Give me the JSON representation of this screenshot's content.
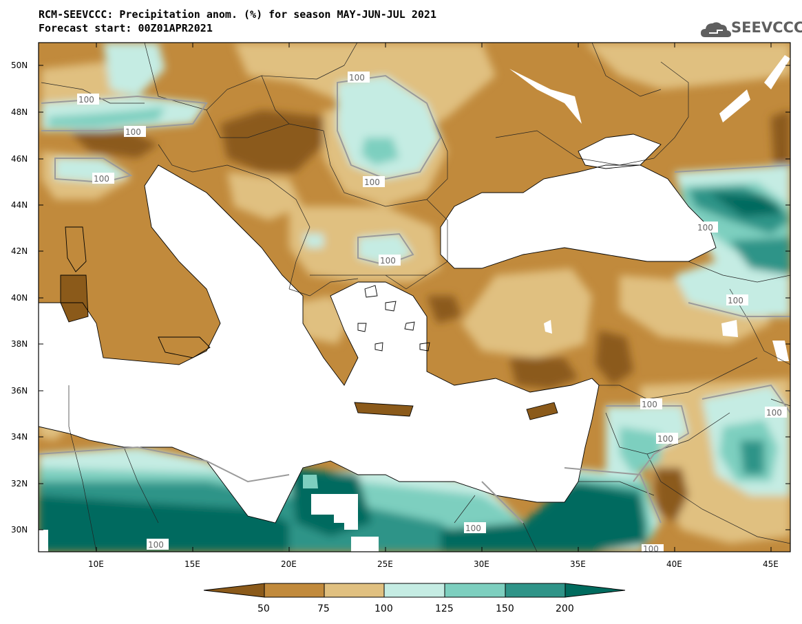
{
  "header": {
    "line1": "RCM-SEEVCCC: Precipitation anom. (%) for season MAY-JUN-JUL 2021",
    "line2": "Forecast start: 00Z01APR2021"
  },
  "logo": {
    "text": "SEEVCCC",
    "icon": "cloud-icon"
  },
  "map": {
    "lon_range": [
      7,
      46
    ],
    "lat_range": [
      29,
      51
    ],
    "lon_ticks": [
      "10E",
      "15E",
      "20E",
      "25E",
      "30E",
      "35E",
      "40E",
      "45E"
    ],
    "lat_ticks": [
      "50N",
      "48N",
      "46N",
      "44N",
      "42N",
      "40N",
      "38N",
      "36N",
      "34N",
      "32N",
      "30N"
    ],
    "contour_labels": [
      "100",
      "100",
      "100",
      "100",
      "100",
      "100",
      "100",
      "100",
      "100",
      "100",
      "100",
      "100",
      "100",
      "100"
    ]
  },
  "colorbar": {
    "levels": [
      "50",
      "75",
      "100",
      "125",
      "150",
      "200"
    ],
    "colors": [
      "#8b5a1a",
      "#c18a3c",
      "#e0c080",
      "#c5ece3",
      "#7dcfbf",
      "#2f9488",
      "#006b5e"
    ]
  }
}
